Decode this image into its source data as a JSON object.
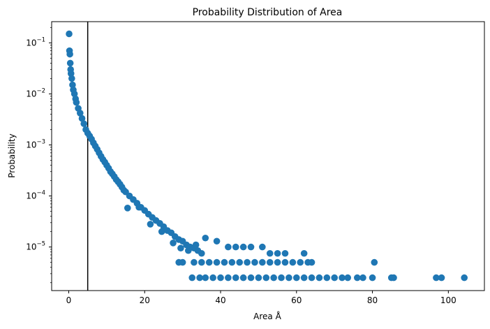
{
  "chart_data": {
    "type": "scatter",
    "title": "Probability Distribution of Area",
    "xlabel": "Area Å",
    "ylabel": "Probability",
    "xscale": "linear",
    "yscale": "log",
    "xlim": [
      -4.5,
      109.5
    ],
    "ylim": [
      1.4e-06,
      0.26
    ],
    "xticks": [
      0,
      20,
      40,
      60,
      80,
      100
    ],
    "xtick_labels": [
      "0",
      "20",
      "40",
      "60",
      "80",
      "100"
    ],
    "yticks": [
      0.1,
      0.01,
      0.001,
      0.0001,
      1e-05
    ],
    "ytick_labels": [
      {
        "base": "10",
        "exp": "−1"
      },
      {
        "base": "10",
        "exp": "−2"
      },
      {
        "base": "10",
        "exp": "−3"
      },
      {
        "base": "10",
        "exp": "−4"
      },
      {
        "base": "10",
        "exp": "−5"
      }
    ],
    "grid": false,
    "legend": "none",
    "marker_color": "#1f77b4",
    "vline": {
      "x": 5,
      "color": "#000000"
    },
    "series": [
      {
        "points": [
          [
            0.1,
            0.15
          ],
          [
            0.2,
            0.07
          ],
          [
            0.3,
            0.06
          ],
          [
            0.4,
            0.04
          ],
          [
            0.5,
            0.03
          ],
          [
            0.6,
            0.025
          ],
          [
            0.8,
            0.02
          ],
          [
            1.0,
            0.015
          ],
          [
            1.2,
            0.012
          ],
          [
            1.5,
            0.01
          ],
          [
            1.8,
            0.008
          ],
          [
            2.0,
            0.0068
          ],
          [
            2.5,
            0.0052
          ],
          [
            3.0,
            0.0042
          ],
          [
            3.5,
            0.0033
          ],
          [
            4.0,
            0.0026
          ],
          [
            4.5,
            0.002
          ],
          [
            5.0,
            0.0017
          ],
          [
            5.5,
            0.0015
          ],
          [
            6.0,
            0.0013
          ],
          [
            6.5,
            0.0011
          ],
          [
            7.0,
            0.00095
          ],
          [
            7.5,
            0.00082
          ],
          [
            8.0,
            0.0007
          ],
          [
            8.5,
            0.0006
          ],
          [
            9.0,
            0.00052
          ],
          [
            9.5,
            0.00046
          ],
          [
            10.0,
            0.0004
          ],
          [
            10.5,
            0.00035
          ],
          [
            11.0,
            0.0003
          ],
          [
            11.5,
            0.00027
          ],
          [
            12.0,
            0.00024
          ],
          [
            12.5,
            0.00021
          ],
          [
            13.0,
            0.00019
          ],
          [
            13.5,
            0.00017
          ],
          [
            14.0,
            0.00015
          ],
          [
            14.5,
            0.00013
          ],
          [
            15.0,
            0.00012
          ],
          [
            16.0,
            0.0001
          ],
          [
            17.0,
            8.5e-05
          ],
          [
            18.0,
            7.2e-05
          ],
          [
            19.0,
            6e-05
          ],
          [
            20.0,
            5.2e-05
          ],
          [
            21.0,
            4.4e-05
          ],
          [
            22.0,
            3.8e-05
          ],
          [
            23.0,
            3.3e-05
          ],
          [
            24.0,
            2.9e-05
          ],
          [
            25.0,
            2.5e-05
          ],
          [
            26.0,
            2.1e-05
          ],
          [
            27.0,
            1.9e-05
          ],
          [
            28.0,
            1.6e-05
          ],
          [
            29.0,
            1.4e-05
          ],
          [
            30.0,
            1.3e-05
          ],
          [
            31.0,
            1.1e-05
          ],
          [
            32.0,
            1e-05
          ],
          [
            33.0,
            9.5e-06
          ],
          [
            34.0,
            8.5e-06
          ],
          [
            35.0,
            7.5e-06
          ],
          [
            15.5,
            5.8e-05
          ],
          [
            18.5,
            6e-05
          ],
          [
            21.5,
            2.8e-05
          ],
          [
            24.5,
            2e-05
          ],
          [
            27.5,
            1.2e-05
          ],
          [
            29.5,
            9.5e-06
          ],
          [
            31.5,
            8.5e-06
          ],
          [
            33.5,
            1.1e-05
          ],
          [
            36.0,
            1.5e-05
          ],
          [
            39.0,
            1.3e-05
          ],
          [
            42.0,
            1e-05
          ],
          [
            44.0,
            1e-05
          ],
          [
            46.0,
            1e-05
          ],
          [
            48.0,
            1e-05
          ],
          [
            51.0,
            1e-05
          ],
          [
            53.0,
            7.5e-06
          ],
          [
            55.0,
            7.5e-06
          ],
          [
            57.0,
            7.5e-06
          ],
          [
            62.0,
            7.5e-06
          ],
          [
            29.0,
            5e-06
          ],
          [
            30.0,
            5e-06
          ],
          [
            33.0,
            5e-06
          ],
          [
            35.0,
            5e-06
          ],
          [
            37.0,
            5e-06
          ],
          [
            39.0,
            5e-06
          ],
          [
            41.0,
            5e-06
          ],
          [
            43.0,
            5e-06
          ],
          [
            45.0,
            5e-06
          ],
          [
            47.0,
            5e-06
          ],
          [
            49.0,
            5e-06
          ],
          [
            51.0,
            5e-06
          ],
          [
            53.0,
            5e-06
          ],
          [
            55.0,
            5e-06
          ],
          [
            57.0,
            5e-06
          ],
          [
            59.0,
            5e-06
          ],
          [
            61.0,
            5e-06
          ],
          [
            63.0,
            5e-06
          ],
          [
            64.0,
            5e-06
          ],
          [
            80.5,
            5e-06
          ],
          [
            32.5,
            2.5e-06
          ],
          [
            34.5,
            2.5e-06
          ],
          [
            36.0,
            2.5e-06
          ],
          [
            38.0,
            2.5e-06
          ],
          [
            40.0,
            2.5e-06
          ],
          [
            42.0,
            2.5e-06
          ],
          [
            44.0,
            2.5e-06
          ],
          [
            46.0,
            2.5e-06
          ],
          [
            48.0,
            2.5e-06
          ],
          [
            50.0,
            2.5e-06
          ],
          [
            52.0,
            2.5e-06
          ],
          [
            54.0,
            2.5e-06
          ],
          [
            56.0,
            2.5e-06
          ],
          [
            58.0,
            2.5e-06
          ],
          [
            60.0,
            2.5e-06
          ],
          [
            62.0,
            2.5e-06
          ],
          [
            64.0,
            2.5e-06
          ],
          [
            66.0,
            2.5e-06
          ],
          [
            68.0,
            2.5e-06
          ],
          [
            70.0,
            2.5e-06
          ],
          [
            72.0,
            2.5e-06
          ],
          [
            73.5,
            2.5e-06
          ],
          [
            76.0,
            2.5e-06
          ],
          [
            77.5,
            2.5e-06
          ],
          [
            80.0,
            2.5e-06
          ],
          [
            85.0,
            2.5e-06
          ],
          [
            85.6,
            2.5e-06
          ],
          [
            96.8,
            2.5e-06
          ],
          [
            98.2,
            2.5e-06
          ],
          [
            104.2,
            2.5e-06
          ]
        ]
      }
    ]
  }
}
